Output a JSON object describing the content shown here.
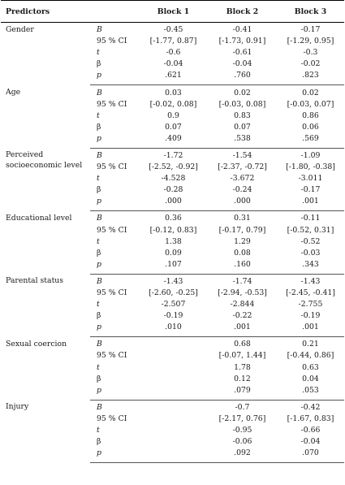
{
  "header": {
    "predictors": "Predictors",
    "block1": "Block 1",
    "block2": "Block 2",
    "block3": "Block 3"
  },
  "groups": [
    {
      "label": "Gender",
      "rows": [
        {
          "stat": "B",
          "b1": "-0.45",
          "b2": "-0.41",
          "b3": "-0.17"
        },
        {
          "stat": "95 % CI",
          "b1": "[-1.77, 0.87]",
          "b2": "[-1.73, 0.91]",
          "b3": "[-1.29, 0.95]"
        },
        {
          "stat": "t",
          "b1": "-0.6",
          "b2": "-0.61",
          "b3": "-0.3"
        },
        {
          "stat": "β",
          "b1": "-0.04",
          "b2": "-0.04",
          "b3": "-0.02"
        },
        {
          "stat": "p",
          "b1": ".621",
          "b2": ".760",
          "b3": ".823"
        }
      ]
    },
    {
      "label": "Age",
      "rows": [
        {
          "stat": "B",
          "b1": "0.03",
          "b2": "0.02",
          "b3": "0.02"
        },
        {
          "stat": "95 % CI",
          "b1": "[-0.02, 0.08]",
          "b2": "[-0.03, 0.08]",
          "b3": "[-0.03, 0.07]"
        },
        {
          "stat": "t",
          "b1": "0.9",
          "b2": "0.83",
          "b3": "0.86"
        },
        {
          "stat": "β",
          "b1": "0.07",
          "b2": "0.07",
          "b3": "0.06"
        },
        {
          "stat": "p",
          "b1": ".409",
          "b2": ".538",
          "b3": ".569"
        }
      ]
    },
    {
      "label": "Perceived socioeconomic level",
      "rows": [
        {
          "stat": "B",
          "b1": "-1.72",
          "b2": "-1.54",
          "b3": "-1.09"
        },
        {
          "stat": "95 % CI",
          "b1": "[-2.52, -0.92]",
          "b2": "[-2.37, -0.72]",
          "b3": "[-1.80, -0.38]"
        },
        {
          "stat": "t",
          "b1": "-4.528",
          "b2": "-3.672",
          "b3": "-3.011"
        },
        {
          "stat": "β",
          "b1": "-0.28",
          "b2": "-0.24",
          "b3": "-0.17"
        },
        {
          "stat": "p",
          "b1": ".000",
          "b2": ".000",
          "b3": ".001"
        }
      ]
    },
    {
      "label": "Educational level",
      "rows": [
        {
          "stat": "B",
          "b1": "0.36",
          "b2": "0.31",
          "b3": "-0.11"
        },
        {
          "stat": "95 % CI",
          "b1": "[-0.12, 0.83]",
          "b2": "[-0.17, 0.79]",
          "b3": "[-0.52, 0.31]"
        },
        {
          "stat": "t",
          "b1": "1.38",
          "b2": "1.29",
          "b3": "-0.52"
        },
        {
          "stat": "β",
          "b1": "0.09",
          "b2": "0.08",
          "b3": "-0.03"
        },
        {
          "stat": "p",
          "b1": ".107",
          "b2": ".160",
          "b3": ".343"
        }
      ]
    },
    {
      "label": "Parental status",
      "rows": [
        {
          "stat": "B",
          "b1": "-1.43",
          "b2": "-1.74",
          "b3": "-1.43"
        },
        {
          "stat": "95 % CI",
          "b1": "[-2.60, -0.25]",
          "b2": "[-2.94, -0.53]",
          "b3": "[-2.45, -0.41]"
        },
        {
          "stat": "t",
          "b1": "-2.507",
          "b2": "-2.844",
          "b3": "-2.755"
        },
        {
          "stat": "β",
          "b1": "-0.19",
          "b2": "-0.22",
          "b3": "-0.19"
        },
        {
          "stat": "p",
          "b1": ".010",
          "b2": ".001",
          "b3": ".001"
        }
      ]
    },
    {
      "label": "Sexual coercion",
      "rows": [
        {
          "stat": "B",
          "b1": "",
          "b2": "0.68",
          "b3": "0.21"
        },
        {
          "stat": "95 % CI",
          "b1": "",
          "b2": "[-0.07, 1.44]",
          "b3": "[-0.44, 0.86]"
        },
        {
          "stat": "t",
          "b1": "",
          "b2": "1.78",
          "b3": "0.63"
        },
        {
          "stat": "β",
          "b1": "",
          "b2": "0.12",
          "b3": "0.04"
        },
        {
          "stat": "p",
          "b1": "",
          "b2": ".079",
          "b3": ".053"
        }
      ]
    },
    {
      "label": "Injury",
      "rows": [
        {
          "stat": "B",
          "b1": "",
          "b2": "-0.7",
          "b3": "-0.42"
        },
        {
          "stat": "95 % CI",
          "b1": "",
          "b2": "[-2.17, 0.76]",
          "b3": "[-1.67, 0.83]"
        },
        {
          "stat": "t",
          "b1": "",
          "b2": "-0.95",
          "b3": "-0.66"
        },
        {
          "stat": "β",
          "b1": "",
          "b2": "-0.06",
          "b3": "-0.04"
        },
        {
          "stat": "p",
          "b1": "",
          "b2": ".092",
          "b3": ".070"
        }
      ]
    }
  ]
}
